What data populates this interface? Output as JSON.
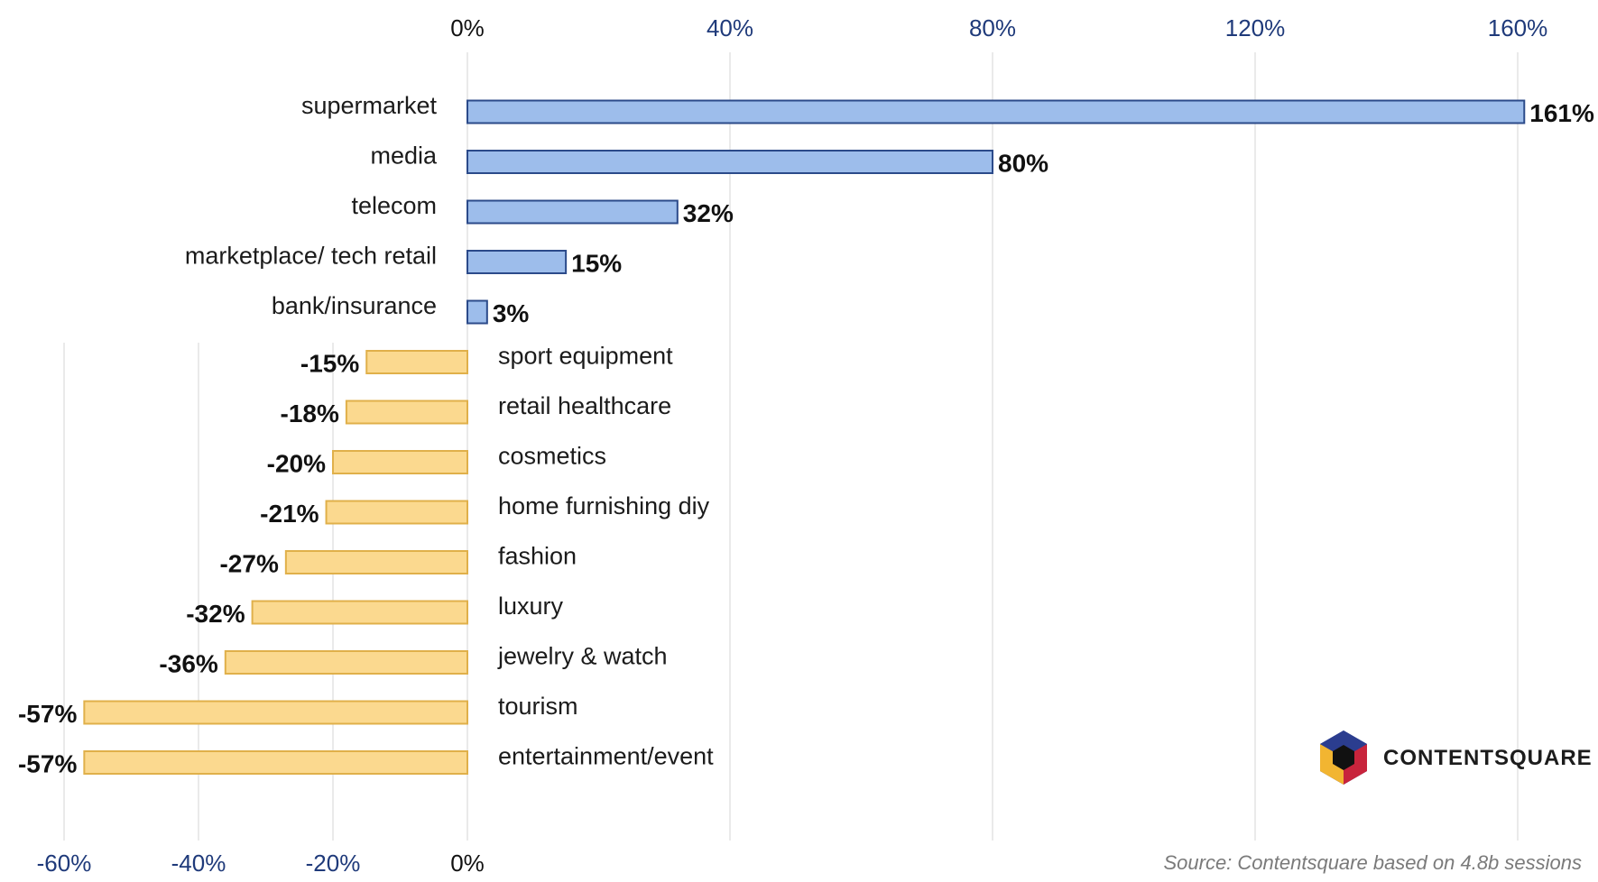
{
  "chart_data": {
    "type": "bar",
    "orientation": "horizontal",
    "categories": [
      "supermarket",
      "media",
      "telecom",
      "marketplace/ tech retail",
      "bank/insurance",
      "sport equipment",
      "retail healthcare",
      "cosmetics",
      "home furnishing diy",
      "fashion",
      "luxury",
      "jewelry & watch",
      "tourism",
      "entertainment/event"
    ],
    "values": [
      161,
      80,
      32,
      15,
      3,
      -15,
      -18,
      -20,
      -21,
      -27,
      -32,
      -36,
      -57,
      -57
    ],
    "value_labels": [
      "161%",
      "80%",
      "32%",
      "15%",
      "3%",
      "-15%",
      "-18%",
      "-20%",
      "-21%",
      "-27%",
      "-32%",
      "-36%",
      "-57%",
      "-57%"
    ],
    "top_axis": {
      "range": [
        0,
        160
      ],
      "ticks": [
        0,
        40,
        80,
        120,
        160
      ],
      "tick_labels": [
        "0%",
        "40%",
        "80%",
        "120%",
        "160%"
      ]
    },
    "bottom_axis": {
      "range": [
        -60,
        0
      ],
      "ticks": [
        -60,
        -40,
        -20,
        0
      ],
      "tick_labels": [
        "-60%",
        "-40%",
        "-20%",
        "0%"
      ]
    },
    "grid": true,
    "colors": {
      "positive_fill": "#9dbdeb",
      "positive_stroke": "#2b4a8a",
      "negative_fill": "#fbd98f",
      "negative_stroke": "#e0b04a",
      "axis_tick_text": "#1f3a7a",
      "zero_tick_text": "#111111",
      "grid": "#e4e4e4"
    }
  },
  "source": "Source: Contentsquare based on 4.8b sessions",
  "brand": {
    "name": "CONTENTSQUARE",
    "logo_icon": "contentsquare-hexagon-logo"
  }
}
